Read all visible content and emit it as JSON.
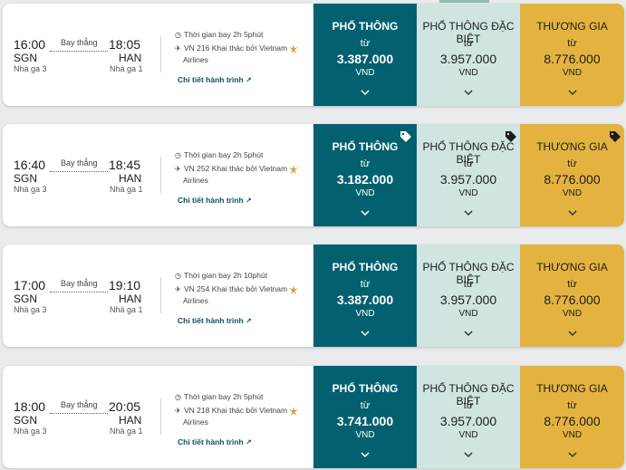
{
  "labels": {
    "nonstop": "Bay thẳng",
    "details": "Chi tiết hành trình",
    "from": "từ",
    "currency": "VND",
    "duration_prefix": "Thời gian bay "
  },
  "fare_classes": [
    "PHỔ THÔNG",
    "PHỔ THÔNG ĐẶC BIỆT",
    "THƯƠNG GIA"
  ],
  "colors": {
    "economy": "#02606f",
    "premium_economy": "#d0e5e2",
    "business": "#e4b33f"
  },
  "flights": [
    {
      "dep_time": "16:00",
      "dep_code": "SGN",
      "dep_terminal": "Nhà ga 3",
      "arr_time": "18:05",
      "arr_code": "HAN",
      "arr_terminal": "Nhà ga 1",
      "duration": "2h 5phút",
      "flight_line": "VN 216 Khai thác bởi Vietnam",
      "airline_line": "Airlines",
      "prices": [
        "3.387.000",
        "3.957.000",
        "8.776.000"
      ]
    },
    {
      "dep_time": "16:40",
      "dep_code": "SGN",
      "dep_terminal": "Nhà ga 3",
      "arr_time": "18:45",
      "arr_code": "HAN",
      "arr_terminal": "Nhà ga 1",
      "duration": "2h 5phút",
      "flight_line": "VN 252 Khai thác bởi Vietnam",
      "airline_line": "Airlines",
      "prices": [
        "3.182.000",
        "3.957.000",
        "8.776.000"
      ]
    },
    {
      "dep_time": "17:00",
      "dep_code": "SGN",
      "dep_terminal": "Nhà ga 3",
      "arr_time": "19:10",
      "arr_code": "HAN",
      "arr_terminal": "Nhà ga 1",
      "duration": "2h 10phút",
      "flight_line": "VN 254 Khai thác bởi Vietnam",
      "airline_line": "Airlines",
      "prices": [
        "3.387.000",
        "3.957.000",
        "8.776.000"
      ]
    },
    {
      "dep_time": "18:00",
      "dep_code": "SGN",
      "dep_terminal": "Nhà ga 3",
      "arr_time": "20:05",
      "arr_code": "HAN",
      "arr_terminal": "Nhà ga 1",
      "duration": "2h 5phút",
      "flight_line": "VN 218 Khai thác bởi Vietnam",
      "airline_line": "Airlines",
      "prices": [
        "3.741.000",
        "3.957.000",
        "8.776.000"
      ]
    }
  ]
}
